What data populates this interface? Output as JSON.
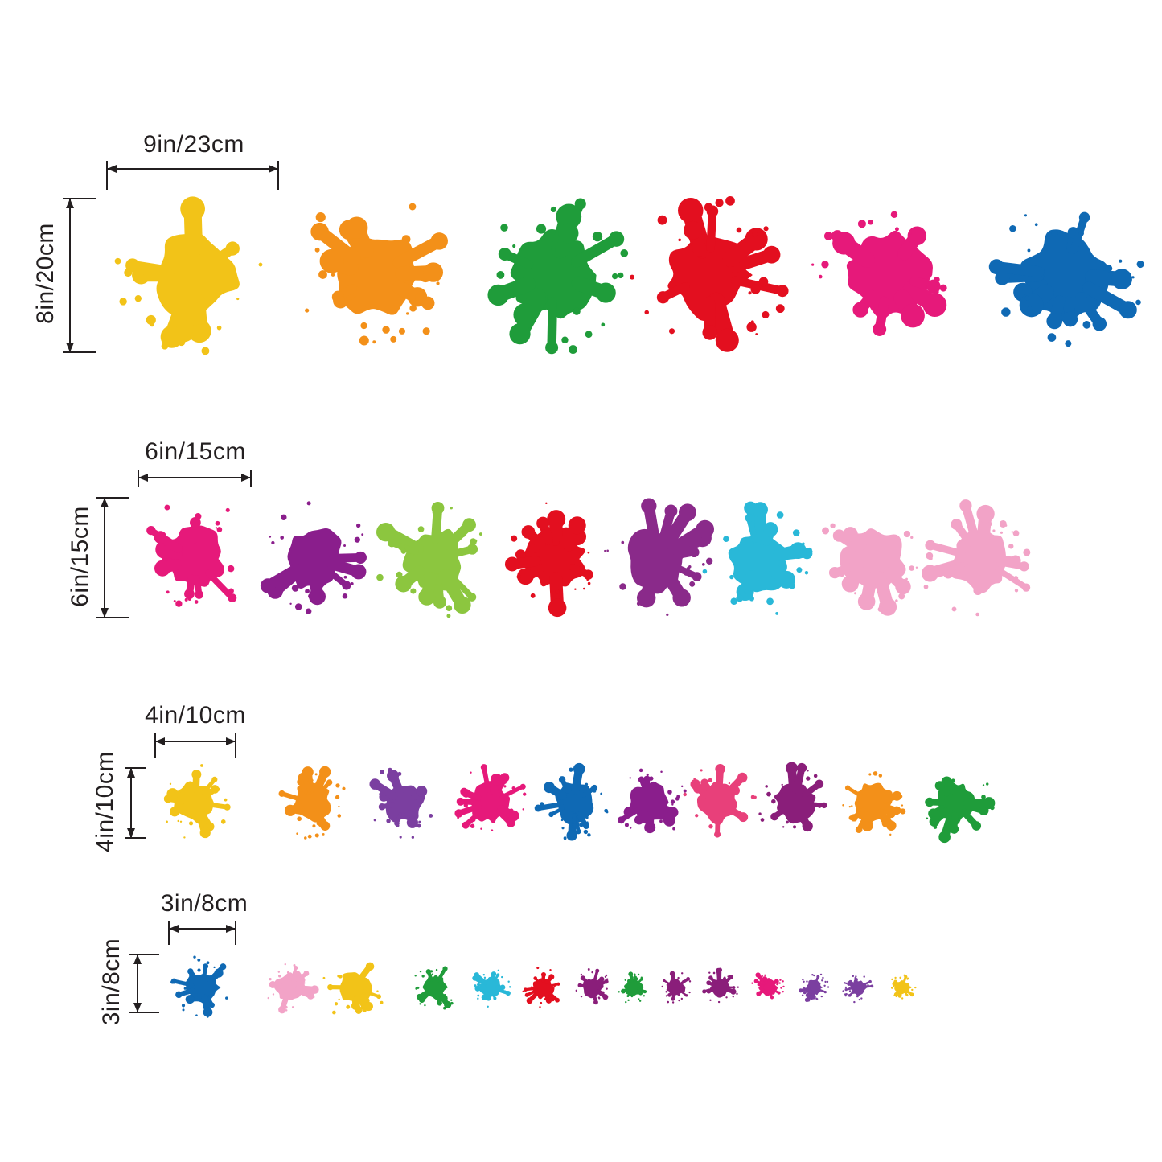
{
  "rows": [
    {
      "width_label": "9in/23cm",
      "height_label": "8in/20cm",
      "splats": [
        {
          "color": "#f2c318"
        },
        {
          "color": "#f39019"
        },
        {
          "color": "#1f9c3a"
        },
        {
          "color": "#e30f1f"
        },
        {
          "color": "#e6197a"
        },
        {
          "color": "#0f69b4"
        }
      ]
    },
    {
      "width_label": "6in/15cm",
      "height_label": "6in/15cm",
      "splats": [
        {
          "color": "#e6197a"
        },
        {
          "color": "#8a1e8c"
        },
        {
          "color": "#8cc63f"
        },
        {
          "color": "#e30f1f"
        },
        {
          "color": "#8a2a8a"
        },
        {
          "color": "#29b8d8"
        },
        {
          "color": "#f2a3c7"
        },
        {
          "color": "#f2a3c7"
        }
      ]
    },
    {
      "width_label": "4in/10cm",
      "height_label": "4in/10cm",
      "splats": [
        {
          "color": "#f2c318"
        },
        {
          "color": "#f39019"
        },
        {
          "color": "#7b3fa0"
        },
        {
          "color": "#e6197a"
        },
        {
          "color": "#0f69b4"
        },
        {
          "color": "#8a1e8c"
        },
        {
          "color": "#e8407a"
        },
        {
          "color": "#8a1e7a"
        },
        {
          "color": "#f39019"
        },
        {
          "color": "#1f9c3a"
        }
      ]
    },
    {
      "width_label": "3in/8cm",
      "height_label": "3in/8cm",
      "splats": [
        {
          "color": "#0f69b4"
        },
        {
          "color": "#f2a3c7"
        },
        {
          "color": "#f2c318"
        },
        {
          "color": "#1f9c3a"
        },
        {
          "color": "#29b8d8"
        },
        {
          "color": "#e30f1f"
        },
        {
          "color": "#8a1e7a"
        },
        {
          "color": "#1f9c3a"
        },
        {
          "color": "#8a1e7a"
        },
        {
          "color": "#8a1e7a"
        },
        {
          "color": "#e6197a"
        },
        {
          "color": "#7b3fa0"
        },
        {
          "color": "#7b3fa0"
        },
        {
          "color": "#f2c318"
        }
      ]
    }
  ]
}
